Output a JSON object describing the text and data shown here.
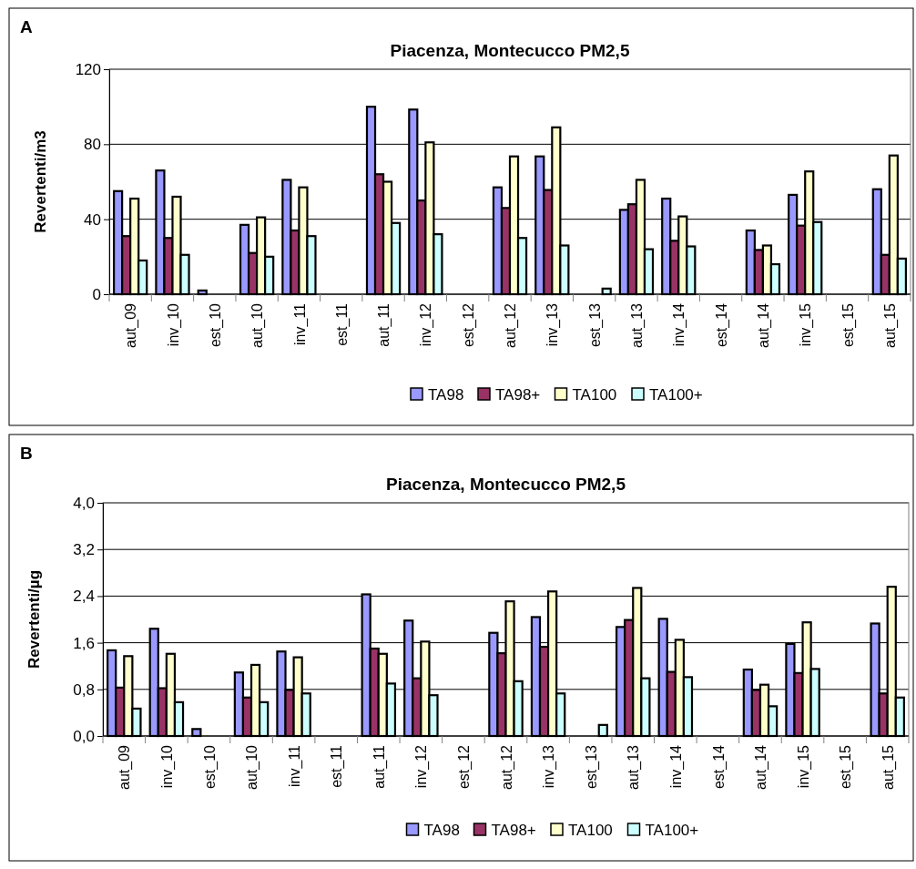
{
  "chart_data": [
    {
      "type": "bar",
      "title": "Piacenza, Montecucco PM2,5",
      "ylabel": "Revertenti/m3",
      "annotations": [
        "A"
      ],
      "categories": [
        "aut_09",
        "inv_10",
        "est_10",
        "aut_10",
        "inv_11",
        "est_11",
        "aut_11",
        "inv_12",
        "est_12",
        "aut_12",
        "inv_13",
        "est_13",
        "aut_13",
        "inv_14",
        "est_14",
        "aut_14",
        "inv_15",
        "est_15",
        "aut_15"
      ],
      "series": [
        {
          "name": "TA98",
          "color": "#9999ff",
          "values": [
            55,
            66,
            2,
            37,
            61,
            null,
            100,
            98.5,
            null,
            57,
            73.5,
            null,
            45,
            51,
            null,
            34,
            53,
            null,
            56
          ]
        },
        {
          "name": "TA98+",
          "color": "#993366",
          "values": [
            31,
            30,
            null,
            22,
            34,
            null,
            64,
            50,
            null,
            46,
            55.6,
            null,
            48,
            28.5,
            null,
            23.6,
            36.6,
            null,
            21
          ]
        },
        {
          "name": "TA100",
          "color": "#ffffcc",
          "values": [
            51,
            52,
            null,
            41,
            57,
            null,
            60,
            81,
            null,
            73.5,
            89,
            null,
            61,
            41.5,
            null,
            26,
            65.5,
            null,
            74
          ]
        },
        {
          "name": "TA100+",
          "color": "#ccffff",
          "values": [
            18,
            21,
            null,
            20,
            31,
            null,
            38,
            32,
            null,
            30,
            26,
            3,
            24,
            25.5,
            null,
            16,
            38.5,
            null,
            19
          ]
        }
      ],
      "ylim": [
        0,
        120
      ],
      "yticks": [
        0,
        40,
        80,
        120
      ],
      "grid": "y",
      "legend": "bottom"
    },
    {
      "type": "bar",
      "title": "Piacenza, Montecucco PM2,5",
      "ylabel": "Revertenti/µg",
      "annotations": [
        "B"
      ],
      "categories": [
        "aut_09",
        "inv_10",
        "est_10",
        "aut_10",
        "inv_11",
        "est_11",
        "aut_11",
        "inv_12",
        "est_12",
        "aut_12",
        "inv_13",
        "est_13",
        "aut_13",
        "inv_14",
        "est_14",
        "aut_14",
        "inv_15",
        "est_15",
        "aut_15"
      ],
      "series": [
        {
          "name": "TA98",
          "color": "#9999ff",
          "values": [
            1.47,
            1.84,
            0.12,
            1.09,
            1.45,
            null,
            2.43,
            1.98,
            null,
            1.77,
            2.04,
            null,
            1.87,
            2.01,
            null,
            1.14,
            1.58,
            null,
            1.93
          ]
        },
        {
          "name": "TA98+",
          "color": "#993366",
          "values": [
            0.83,
            0.82,
            null,
            0.66,
            0.79,
            null,
            1.5,
            0.99,
            null,
            1.42,
            1.53,
            null,
            1.99,
            1.1,
            null,
            0.79,
            1.08,
            null,
            0.73
          ]
        },
        {
          "name": "TA100",
          "color": "#ffffcc",
          "values": [
            1.37,
            1.41,
            null,
            1.22,
            1.35,
            null,
            1.41,
            1.62,
            null,
            2.31,
            2.48,
            null,
            2.54,
            1.65,
            null,
            0.88,
            1.95,
            null,
            2.56
          ]
        },
        {
          "name": "TA100+",
          "color": "#ccffff",
          "values": [
            0.47,
            0.58,
            null,
            0.58,
            0.73,
            null,
            0.9,
            0.7,
            null,
            0.94,
            0.73,
            0.19,
            0.99,
            1.01,
            null,
            0.51,
            1.15,
            null,
            0.66
          ]
        }
      ],
      "ylim": [
        0,
        4
      ],
      "yticks": [
        {
          "value": 0,
          "label": "0,0"
        },
        {
          "value": 0.8,
          "label": "0,8"
        },
        {
          "value": 1.6,
          "label": "1,6"
        },
        {
          "value": 2.4,
          "label": "2,4"
        },
        {
          "value": 3.2,
          "label": "3,2"
        },
        {
          "value": 4,
          "label": "4,0"
        }
      ],
      "grid": "y",
      "legend": "bottom"
    }
  ]
}
